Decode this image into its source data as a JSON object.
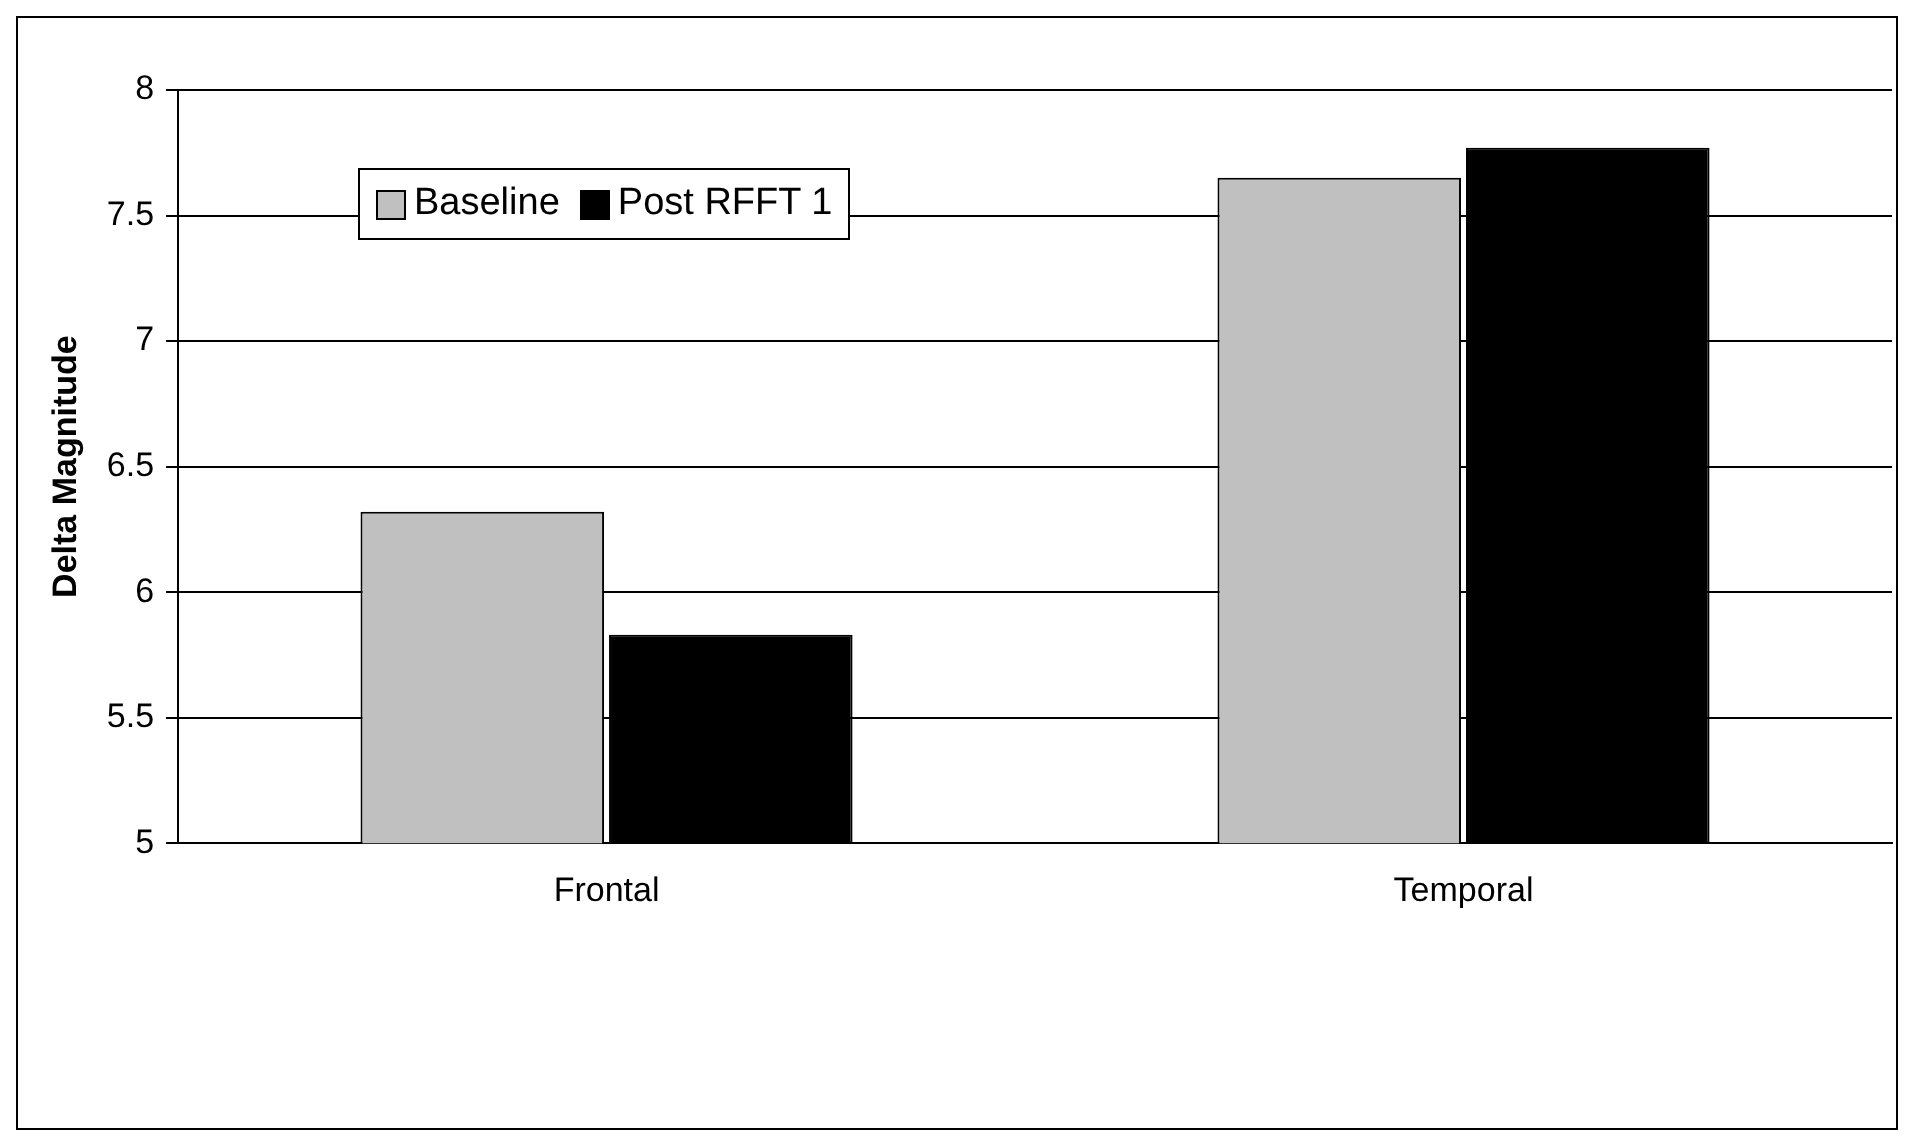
{
  "chart_data": {
    "type": "bar",
    "ylabel": "Delta Magnitude",
    "categories": [
      "Frontal",
      "Temporal"
    ],
    "series": [
      {
        "name": "Baseline",
        "color": "#c0c0c0",
        "values": [
          6.32,
          7.65
        ]
      },
      {
        "name": "Post RFFT 1",
        "color": "#000000",
        "values": [
          5.83,
          7.77
        ]
      }
    ],
    "ylim": [
      5,
      8
    ],
    "yticks": [
      5,
      5.5,
      6,
      6.5,
      7,
      7.5,
      8
    ],
    "grid": "y",
    "legend": "top left"
  }
}
